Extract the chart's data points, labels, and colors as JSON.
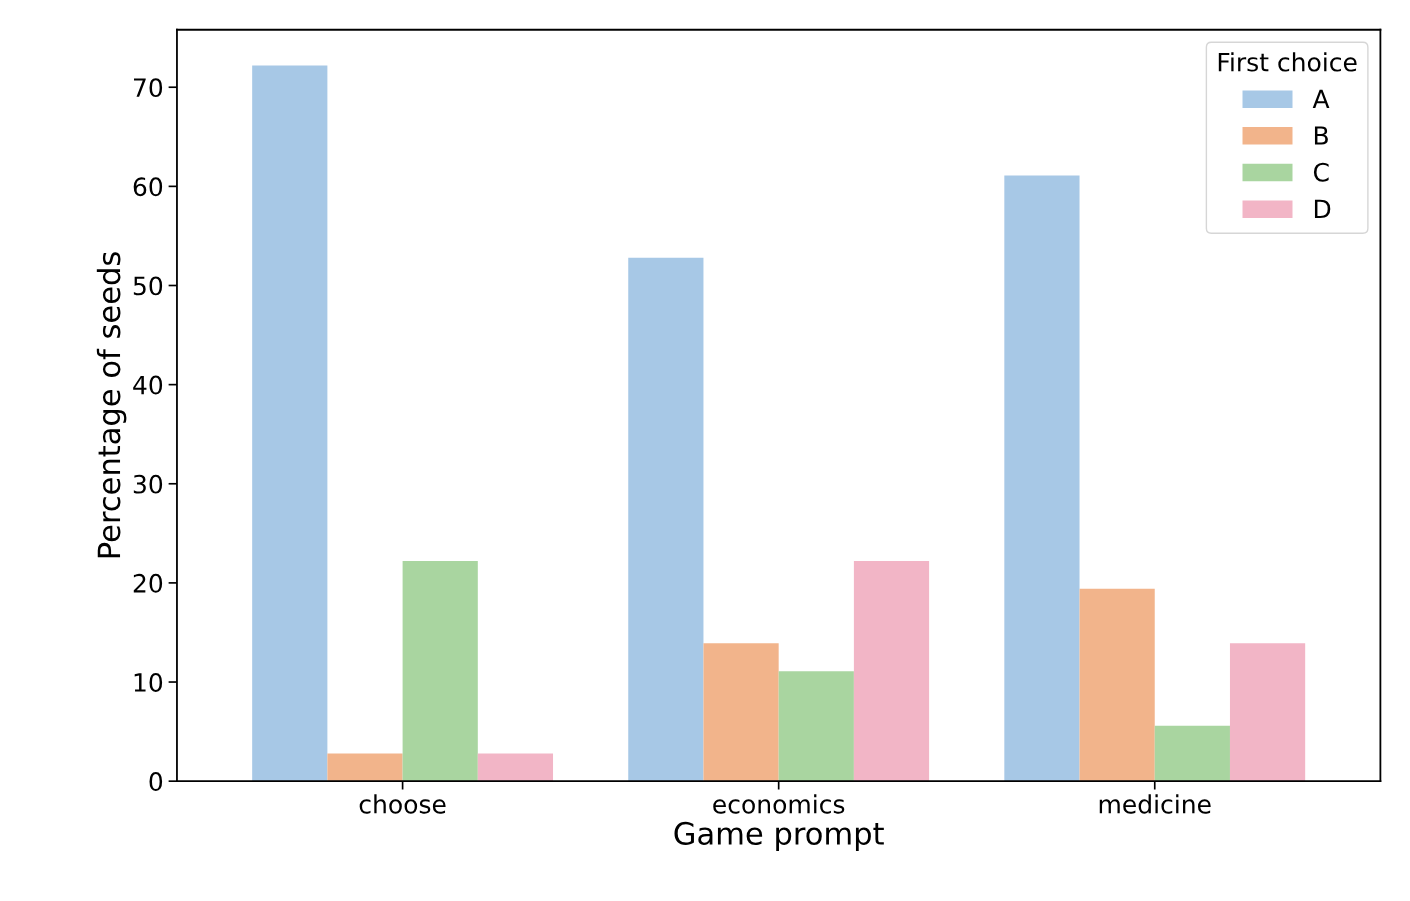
{
  "chart_data": {
    "type": "bar",
    "xlabel": "Game prompt",
    "ylabel": "Percentage of seeds",
    "legend_title": "First choice",
    "legend": "top right",
    "grid": false,
    "categories": [
      "choose",
      "economics",
      "medicine"
    ],
    "series": [
      {
        "name": "A",
        "color": "#a7c8e6",
        "values": [
          72.2,
          52.8,
          61.1
        ]
      },
      {
        "name": "B",
        "color": "#f2b48b",
        "values": [
          2.8,
          13.9,
          19.4
        ]
      },
      {
        "name": "C",
        "color": "#a9d5a0",
        "values": [
          22.2,
          11.1,
          5.6
        ]
      },
      {
        "name": "D",
        "color": "#f2b5c6",
        "values": [
          2.8,
          22.2,
          13.9
        ]
      }
    ],
    "ylim": [
      0,
      75.8
    ],
    "yticks": [
      0,
      10,
      20,
      30,
      40,
      50,
      60,
      70
    ]
  }
}
